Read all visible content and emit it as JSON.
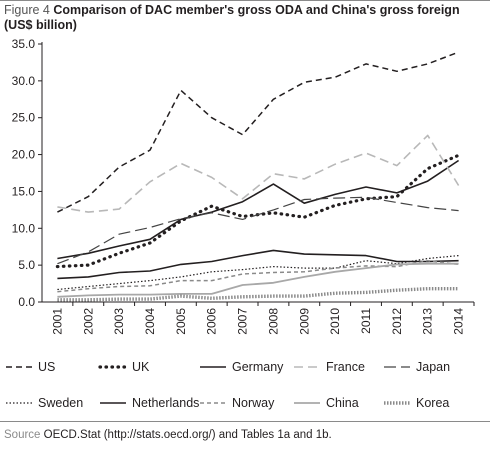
{
  "figure": {
    "label": "Figure 4",
    "title": "Comparison of DAC member's gross ODA and China's gross foreign (US$ billion)",
    "source_label": "Source",
    "source_text": "OECD.Stat (http://stats.oecd.org/) and Tables 1a and 1b."
  },
  "chart_data": {
    "type": "line",
    "title": "Comparison of DAC member's gross ODA and China's gross foreign (US$ billion)",
    "xlabel": "",
    "ylabel": "",
    "x": [
      "2001",
      "2002",
      "2003",
      "2004",
      "2005",
      "2006",
      "2007",
      "2008",
      "2009",
      "2010",
      "2011",
      "2012",
      "2013",
      "2014"
    ],
    "ylim": [
      0,
      35
    ],
    "yticks": [
      "0.0",
      "5.0",
      "10.0",
      "15.0",
      "20.0",
      "25.0",
      "30.0",
      "35.0"
    ],
    "grid": false,
    "legend_position": "bottom",
    "series": [
      {
        "name": "US",
        "color": "#231f20",
        "style": "dashed",
        "values": [
          12.2,
          14.3,
          18.3,
          20.6,
          28.7,
          25.0,
          22.7,
          27.5,
          29.8,
          30.5,
          32.3,
          31.3,
          32.3,
          33.9
        ]
      },
      {
        "name": "UK",
        "color": "#231f20",
        "style": "dotted-thick",
        "values": [
          4.8,
          5.0,
          6.6,
          8.0,
          11.0,
          13.0,
          11.6,
          12.1,
          11.5,
          13.1,
          14.0,
          14.3,
          18.1,
          19.9
        ]
      },
      {
        "name": "Germany",
        "color": "#231f20",
        "style": "solid",
        "values": [
          5.9,
          6.6,
          7.6,
          8.5,
          11.2,
          12.2,
          13.6,
          16.0,
          13.4,
          14.6,
          15.6,
          14.8,
          16.4,
          19.2
        ]
      },
      {
        "name": "France",
        "color": "#b8b8b8",
        "style": "dashed-light",
        "values": [
          12.9,
          12.2,
          12.6,
          16.3,
          18.8,
          16.9,
          14.0,
          17.4,
          16.7,
          18.7,
          20.2,
          18.5,
          22.6,
          15.8
        ]
      },
      {
        "name": "Japan",
        "color": "#444444",
        "style": "dashed-long",
        "values": [
          5.2,
          6.8,
          9.2,
          10.1,
          11.3,
          12.1,
          11.2,
          12.5,
          13.9,
          14.1,
          14.2,
          13.5,
          12.8,
          12.4
        ]
      },
      {
        "name": "Sweden",
        "color": "#231f20",
        "style": "dotted",
        "values": [
          1.7,
          2.1,
          2.5,
          2.9,
          3.4,
          4.1,
          4.4,
          4.8,
          4.6,
          4.6,
          5.6,
          5.2,
          5.9,
          6.3
        ]
      },
      {
        "name": "Netherlands",
        "color": "#231f20",
        "style": "solid",
        "values": [
          3.2,
          3.4,
          4.0,
          4.2,
          5.1,
          5.5,
          6.3,
          7.0,
          6.5,
          6.4,
          6.3,
          5.5,
          5.5,
          5.6
        ]
      },
      {
        "name": "Norway",
        "color": "#8a8a8a",
        "style": "dashed-short",
        "values": [
          1.4,
          1.8,
          2.1,
          2.2,
          2.9,
          2.9,
          3.8,
          4.0,
          4.1,
          4.6,
          4.9,
          4.8,
          5.6,
          5.1
        ]
      },
      {
        "name": "China",
        "color": "#a8a8a8",
        "style": "solid-light",
        "values": [
          0.7,
          0.9,
          1.0,
          1.0,
          1.1,
          1.1,
          2.3,
          2.6,
          3.4,
          4.1,
          4.6,
          5.1,
          5.2,
          5.2
        ]
      },
      {
        "name": "Korea",
        "color": "#8a8a8a",
        "style": "dotted-heavy",
        "values": [
          0.3,
          0.3,
          0.4,
          0.4,
          0.8,
          0.5,
          0.7,
          0.8,
          0.8,
          1.2,
          1.3,
          1.6,
          1.8,
          1.8
        ]
      }
    ]
  }
}
